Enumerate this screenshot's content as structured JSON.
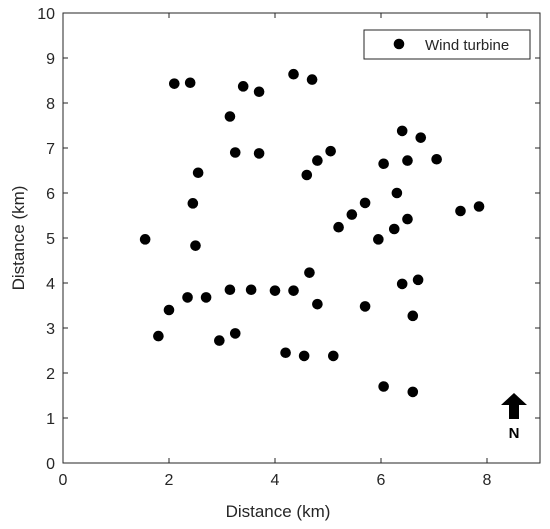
{
  "chart_data": {
    "type": "scatter",
    "title": "",
    "xlabel": "Distance (km)",
    "ylabel": "Distance (km)",
    "xlim": [
      0,
      9
    ],
    "ylim": [
      0,
      10
    ],
    "xticks": [
      "0",
      "2",
      "4",
      "6",
      "8"
    ],
    "yticks": [
      "0",
      "1",
      "2",
      "3",
      "4",
      "5",
      "6",
      "7",
      "8",
      "9",
      "10"
    ],
    "grid": false,
    "legend_position": "top-right",
    "series": [
      {
        "name": "Wind turbine",
        "color": "#000000",
        "marker": "circle",
        "points": [
          [
            2.1,
            8.43
          ],
          [
            2.4,
            8.45
          ],
          [
            3.4,
            8.37
          ],
          [
            3.7,
            8.25
          ],
          [
            4.35,
            8.64
          ],
          [
            4.7,
            8.52
          ],
          [
            3.15,
            7.7
          ],
          [
            3.25,
            6.9
          ],
          [
            3.7,
            6.88
          ],
          [
            4.8,
            6.72
          ],
          [
            5.05,
            6.93
          ],
          [
            4.6,
            6.4
          ],
          [
            2.55,
            6.45
          ],
          [
            2.45,
            5.77
          ],
          [
            1.55,
            4.97
          ],
          [
            2.5,
            4.83
          ],
          [
            6.4,
            7.38
          ],
          [
            6.75,
            7.23
          ],
          [
            6.05,
            6.65
          ],
          [
            6.5,
            6.72
          ],
          [
            7.05,
            6.75
          ],
          [
            6.3,
            6.0
          ],
          [
            5.7,
            5.78
          ],
          [
            5.45,
            5.52
          ],
          [
            5.2,
            5.24
          ],
          [
            5.95,
            4.97
          ],
          [
            6.25,
            5.2
          ],
          [
            6.5,
            5.42
          ],
          [
            7.5,
            5.6
          ],
          [
            7.85,
            5.7
          ],
          [
            4.65,
            4.23
          ],
          [
            6.7,
            4.07
          ],
          [
            6.4,
            3.98
          ],
          [
            2.0,
            3.4
          ],
          [
            2.35,
            3.68
          ],
          [
            2.7,
            3.68
          ],
          [
            3.15,
            3.85
          ],
          [
            3.55,
            3.85
          ],
          [
            4.0,
            3.83
          ],
          [
            4.35,
            3.83
          ],
          [
            4.8,
            3.53
          ],
          [
            5.7,
            3.48
          ],
          [
            6.6,
            3.27
          ],
          [
            1.8,
            2.82
          ],
          [
            2.95,
            2.72
          ],
          [
            3.25,
            2.88
          ],
          [
            4.2,
            2.45
          ],
          [
            4.55,
            2.38
          ],
          [
            5.1,
            2.38
          ],
          [
            6.05,
            1.7
          ],
          [
            6.6,
            1.58
          ]
        ]
      }
    ],
    "annotations": [
      {
        "text": "N",
        "symbol": "north-arrow"
      }
    ]
  }
}
